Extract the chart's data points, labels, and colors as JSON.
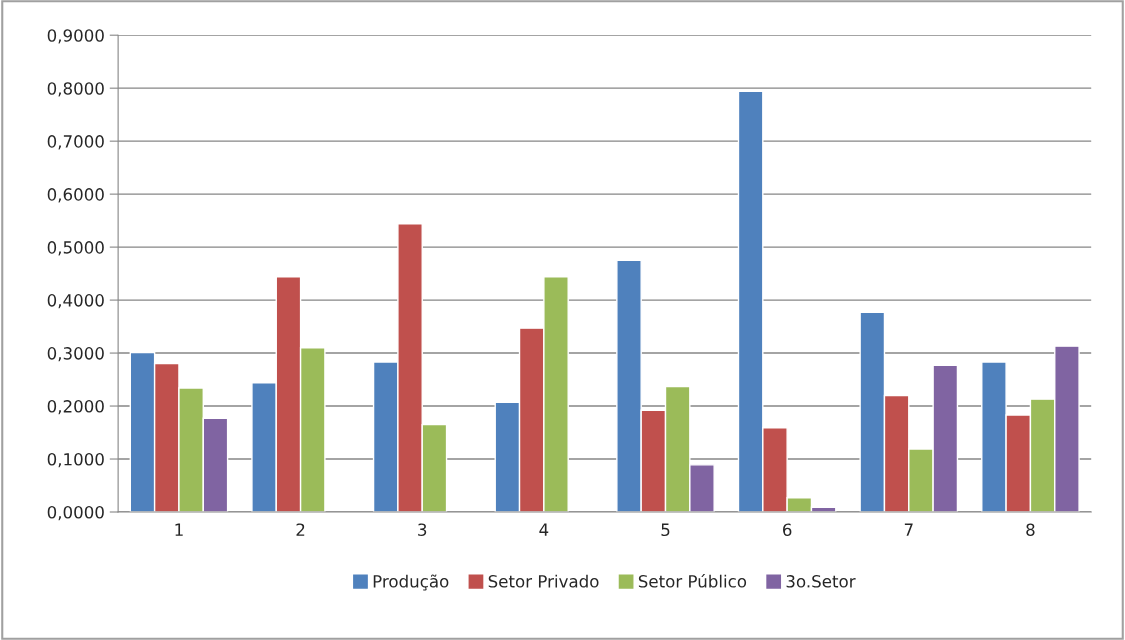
{
  "chart_data": {
    "type": "bar",
    "categories": [
      "1",
      "2",
      "3",
      "4",
      "5",
      "6",
      "7",
      "8"
    ],
    "series": [
      {
        "name": "Produção",
        "color": "#4f81bd",
        "values": [
          0.301,
          0.244,
          0.283,
          0.207,
          0.475,
          0.794,
          0.377,
          0.283
        ]
      },
      {
        "name": "Setor Privado",
        "color": "#c0504d",
        "values": [
          0.28,
          0.444,
          0.544,
          0.347,
          0.192,
          0.159,
          0.22,
          0.183
        ]
      },
      {
        "name": "Setor Público",
        "color": "#9bbb59",
        "values": [
          0.234,
          0.31,
          0.165,
          0.444,
          0.237,
          0.027,
          0.119,
          0.213
        ]
      },
      {
        "name": "3o.Setor",
        "color": "#8064a2",
        "values": [
          0.177,
          null,
          null,
          null,
          0.089,
          0.009,
          0.277,
          0.313
        ]
      }
    ],
    "ylim": [
      0,
      0.9
    ],
    "yticks": [
      {
        "value": 0,
        "label": "0,0000"
      },
      {
        "value": 0.1,
        "label": "0,1000"
      },
      {
        "value": 0.2,
        "label": "0,2000"
      },
      {
        "value": 0.3,
        "label": "0,3000"
      },
      {
        "value": 0.4,
        "label": "0,4000"
      },
      {
        "value": 0.5,
        "label": "0,5000"
      },
      {
        "value": 0.6,
        "label": "0,6000"
      },
      {
        "value": 0.7,
        "label": "0,7000"
      },
      {
        "value": 0.8,
        "label": "0,8000"
      },
      {
        "value": 0.9,
        "label": "0,9000"
      }
    ],
    "grid": "y",
    "legend": "bottom"
  }
}
